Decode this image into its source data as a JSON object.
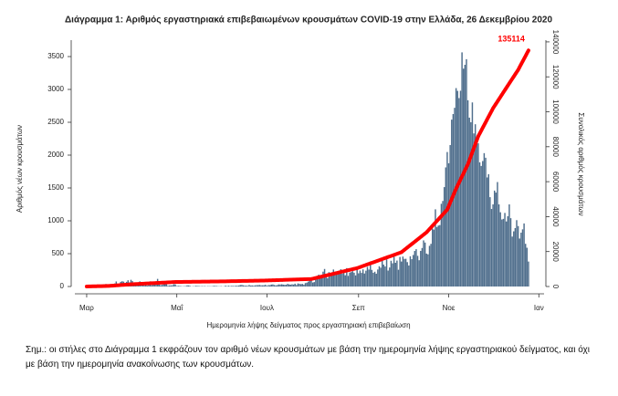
{
  "chart_data": {
    "type": "bar_line",
    "title": "Διάγραμμα 1: Αριθμός εργαστηριακά επιβεβαιωμένων κρουσμάτων COVID-19 στην Ελλάδα, 26 Δεκεμβρίου 2020",
    "xlabel": "Ημερομηνία λήψης δείγματος προς εργαστηριακή επιβεβαίωση",
    "ylabel": "Αριθμός νέων κρουσμάτων",
    "y2label": "Συνολικός αριθμός κρουσμάτων",
    "note": "Σημ.: οι στήλες στο Διάγραμμα 1 εκφράζουν τον αριθμό νέων κρουσμάτων με βάση την ημερομηνία λήψης εργαστηριακού δείγματος, και όχι με βάση την ημερομηνία ανακοίνωσης των κρουσμάτων.",
    "xlim": [
      -8,
      312
    ],
    "xticks": [
      {
        "value": 0,
        "label": "Μαρ"
      },
      {
        "value": 61,
        "label": "Μαΐ"
      },
      {
        "value": 122,
        "label": "Ιουλ"
      },
      {
        "value": 184,
        "label": "Σεπ"
      },
      {
        "value": 245,
        "label": "Νοε"
      },
      {
        "value": 306,
        "label": "Ιαν"
      }
    ],
    "ylim": [
      0,
      3750
    ],
    "yticks": [
      0,
      500,
      1000,
      1500,
      2000,
      2500,
      3000,
      3500
    ],
    "y2lim": [
      0,
      141000
    ],
    "y2ticks": [
      0,
      20000,
      40000,
      60000,
      80000,
      100000,
      120000,
      140000
    ],
    "series": [
      {
        "type": "bar",
        "color": "#4f6e8c",
        "values": [
          0,
          0,
          3,
          2,
          1,
          9,
          13,
          2,
          7,
          15,
          9,
          16,
          10,
          38,
          26,
          31,
          35,
          18,
          31,
          46,
          77,
          37,
          41,
          71,
          80,
          74,
          50,
          71,
          95,
          63,
          102,
          82,
          55,
          29,
          56,
          64,
          78,
          12,
          40,
          15,
          54,
          13,
          49,
          79,
          19,
          32,
          30,
          40,
          116,
          29,
          21,
          24,
          77,
          36,
          72,
          12,
          16,
          17,
          19,
          35,
          33,
          6,
          10,
          9,
          5,
          3,
          5,
          6,
          17,
          16,
          8,
          2,
          4,
          5,
          10,
          7,
          8,
          3,
          6,
          4,
          6,
          2,
          5,
          4,
          4,
          4,
          10,
          8,
          7,
          4,
          3,
          5,
          2,
          3,
          13,
          4,
          12,
          6,
          9,
          9,
          7,
          12,
          11,
          15,
          22,
          24,
          18,
          12,
          13,
          9,
          23,
          14,
          16,
          12,
          17,
          20,
          20,
          23,
          18,
          18,
          19,
          26,
          10,
          22,
          20,
          30,
          32,
          23,
          17,
          21,
          32,
          30,
          34,
          29,
          26,
          27,
          40,
          32,
          28,
          34,
          30,
          43,
          22,
          47,
          41,
          36,
          40,
          28,
          52,
          59,
          75,
          98,
          110,
          61,
          68,
          121,
          150,
          181,
          165,
          162,
          226,
          267,
          158,
          126,
          219,
          182,
          208,
          259,
          220,
          187,
          207,
          217,
          263,
          195,
          233,
          171,
          280,
          162,
          213,
          220,
          234,
          210,
          169,
          271,
          201,
          243,
          207,
          261,
          198,
          241,
          299,
          258,
          347,
          253,
          209,
          225,
          195,
          259,
          308,
          286,
          412,
          333,
          305,
          412,
          243,
          289,
          392,
          353,
          454,
          361,
          395,
          255,
          450,
          380,
          456,
          420,
          422,
          371,
          320,
          460,
          416,
          480,
          541,
          568,
          467,
          400,
          542,
          586,
          702,
          669,
          501,
          490,
          619,
          650,
          882,
          866,
          1175,
          905,
          928,
          935,
          1259,
          1302,
          1513,
          1813,
          2047,
          1876,
          2153,
          2540,
          2625,
          2720,
          3020,
          2978,
          2868,
          2980,
          3564,
          3316,
          3375,
          3460,
          2835,
          2570,
          2500,
          2802,
          2330,
          2470,
          2200,
          2180,
          1890,
          1835,
          1910,
          2030,
          1960,
          1660,
          1710,
          1360,
          1180,
          1250,
          1460,
          1430,
          1590,
          1250,
          1130,
          1020,
          1030,
          1120,
          990,
          1070,
          1250,
          1040,
          760,
          840,
          890,
          1010,
          920,
          730,
          820,
          870,
          960,
          650,
          590,
          380
        ]
      },
      {
        "type": "line",
        "axis": "y2",
        "color": "#ff0000",
        "x": [
          0,
          15,
          31,
          60,
          91,
          121,
          152,
          183,
          213,
          230,
          244,
          250,
          258,
          265,
          275,
          285,
          292,
          299
        ],
        "values": [
          7,
          330,
          1314,
          2591,
          2917,
          3432,
          4279,
          10524,
          19613,
          31000,
          44000,
          56000,
          70000,
          86000,
          102000,
          115000,
          124000,
          135114
        ]
      }
    ]
  }
}
